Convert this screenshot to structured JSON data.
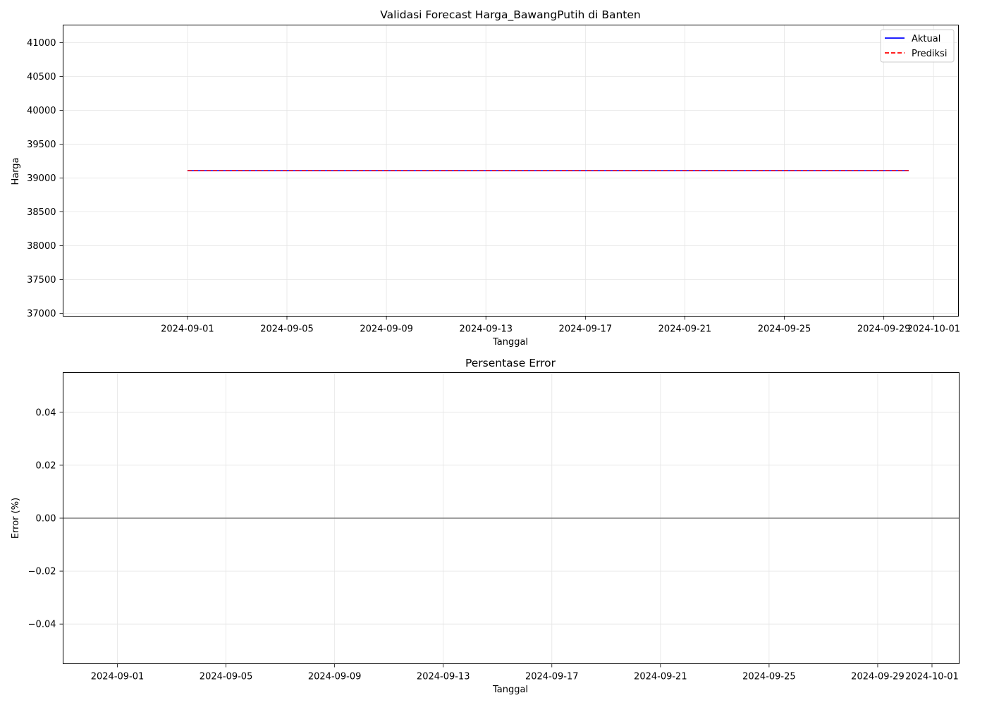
{
  "chart_data": [
    {
      "type": "line",
      "title": "Validasi Forecast Harga_BawangPutih di Banten",
      "xlabel": "Tanggal",
      "ylabel": "Harga",
      "xlim": [
        "2024-08-27",
        "2024-10-02"
      ],
      "ylim": [
        36960,
        41260
      ],
      "x_ticks": [
        "2024-09-01",
        "2024-09-05",
        "2024-09-09",
        "2024-09-13",
        "2024-09-17",
        "2024-09-21",
        "2024-09-25",
        "2024-09-29",
        "2024-10-01"
      ],
      "y_ticks": [
        37000,
        37500,
        38000,
        38500,
        39000,
        39500,
        40000,
        40500,
        41000
      ],
      "grid": true,
      "legend": "top-right",
      "series": [
        {
          "name": "Aktual",
          "color": "#0000ff",
          "style": "solid",
          "x": [
            "2024-09-01",
            "2024-09-30"
          ],
          "y": [
            39110,
            39110
          ]
        },
        {
          "name": "Prediksi",
          "color": "#ff0000",
          "style": "dashed",
          "x": [
            "2024-09-01",
            "2024-09-30"
          ],
          "y": [
            39110,
            39110
          ]
        }
      ]
    },
    {
      "type": "line",
      "title": "Persentase Error",
      "xlabel": "Tanggal",
      "ylabel": "Error (%)",
      "xlim": [
        "2024-08-30",
        "2024-10-02"
      ],
      "ylim": [
        -0.055,
        0.055
      ],
      "x_ticks": [
        "2024-09-01",
        "2024-09-05",
        "2024-09-09",
        "2024-09-13",
        "2024-09-17",
        "2024-09-21",
        "2024-09-25",
        "2024-09-29",
        "2024-10-01"
      ],
      "y_ticks": [
        -0.04,
        -0.02,
        0.0,
        0.02,
        0.04
      ],
      "y_tick_labels": [
        "−0.04",
        "−0.02",
        "0.00",
        "0.02",
        "0.04"
      ],
      "grid": true,
      "reference_line": {
        "y": 0,
        "color": "#808080"
      },
      "series": []
    }
  ]
}
